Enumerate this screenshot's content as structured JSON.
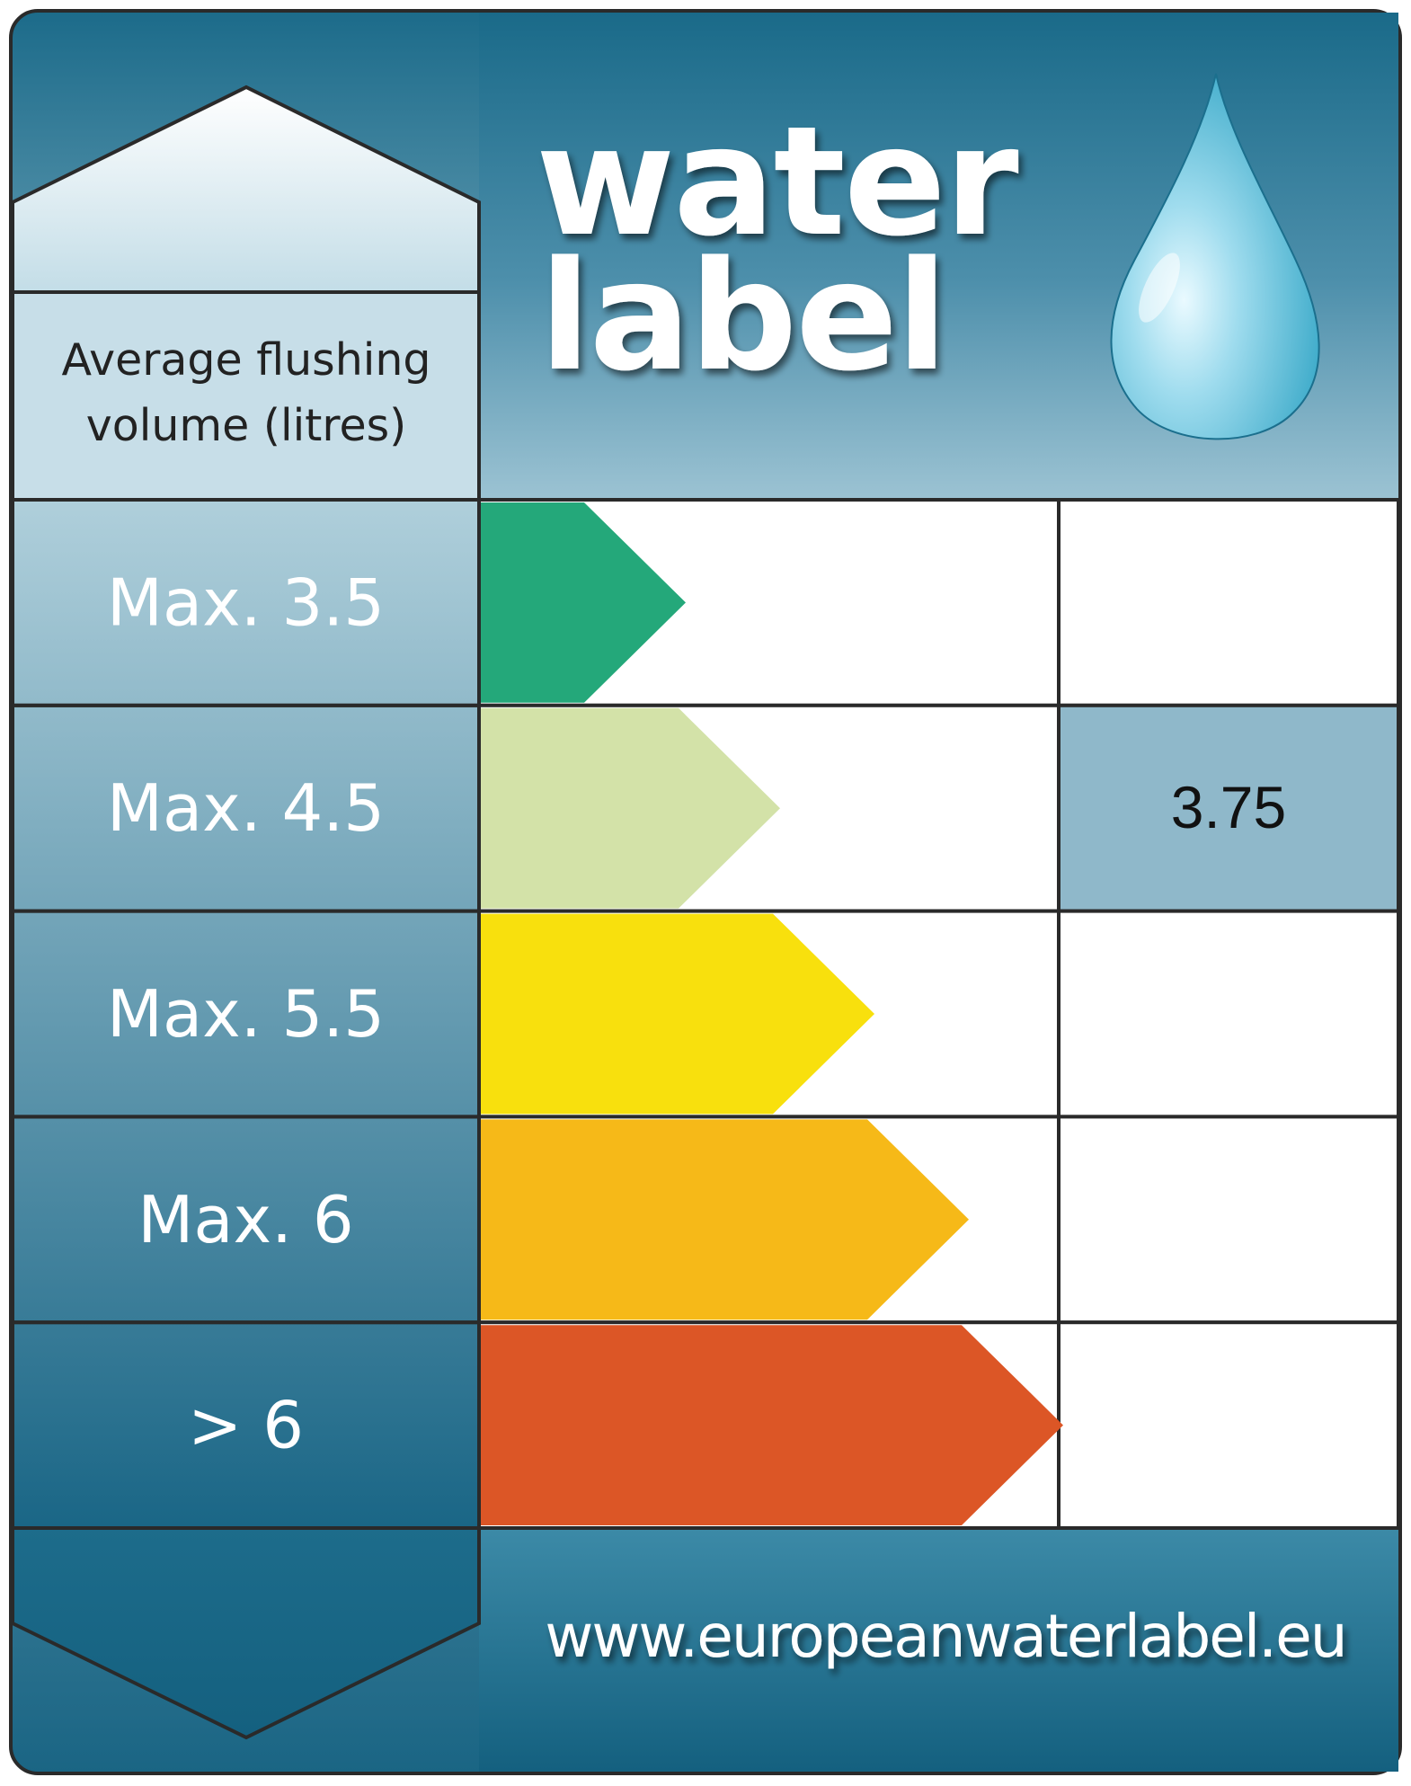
{
  "label": {
    "logo_line1": "water",
    "logo_line2": "label",
    "column_header_line1": "Average flushing",
    "column_header_line2": "volume (litres)",
    "website": "www.europeanwaterlabel.eu",
    "rating_value": "3.75",
    "selected_band": 2
  },
  "bands": [
    {
      "label": "Max. 3.5",
      "color": "#24a87a",
      "rating": ""
    },
    {
      "label": "Max. 4.5",
      "color": "#d3e2a8",
      "rating": "3.75"
    },
    {
      "label": "Max. 5.5",
      "color": "#f8e00d",
      "rating": ""
    },
    {
      "label": "Max. 6",
      "color": "#f6b918",
      "rating": ""
    },
    {
      "label": "> 6",
      "color": "#dc5626",
      "rating": ""
    }
  ],
  "colors": {
    "frame_dark": "#1b6a88",
    "frame_light": "#a9cbd8",
    "highlight_cell": "#8fb8ca",
    "drop_light": "#bfeaf5",
    "drop_dark": "#2ca9c9"
  },
  "icons": {
    "water_drop": "water-drop-icon",
    "up_chevron": "chevron-up-shape",
    "down_chevron": "chevron-down-shape"
  }
}
